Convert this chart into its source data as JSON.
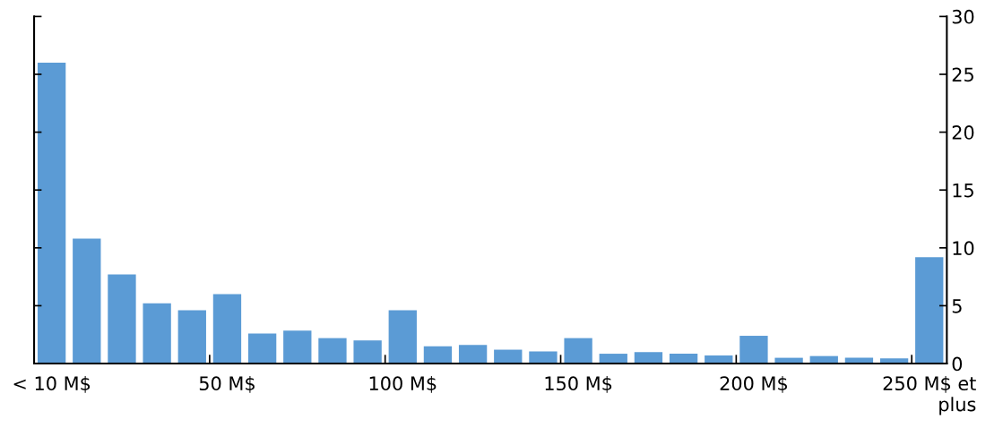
{
  "chart_data": {
    "type": "bar",
    "categories": [
      "< 10 M$",
      null,
      null,
      null,
      null,
      "50 M$",
      null,
      null,
      null,
      null,
      "100 M$",
      null,
      null,
      null,
      null,
      "150 M$",
      null,
      null,
      null,
      null,
      "200 M$",
      null,
      null,
      null,
      null,
      "250 M$ et\nplus"
    ],
    "values": [
      26.0,
      10.8,
      7.7,
      5.2,
      4.6,
      6.0,
      2.6,
      2.85,
      2.2,
      2.0,
      4.6,
      1.5,
      1.6,
      1.2,
      1.05,
      2.2,
      0.85,
      1.0,
      0.85,
      0.7,
      2.4,
      0.5,
      0.65,
      0.5,
      0.45,
      9.2
    ],
    "color": "#5b9bd5",
    "ylim": [
      0,
      30
    ],
    "yticks": [
      0,
      5,
      10,
      15,
      20,
      25,
      30
    ],
    "grid": false,
    "legend": false
  }
}
